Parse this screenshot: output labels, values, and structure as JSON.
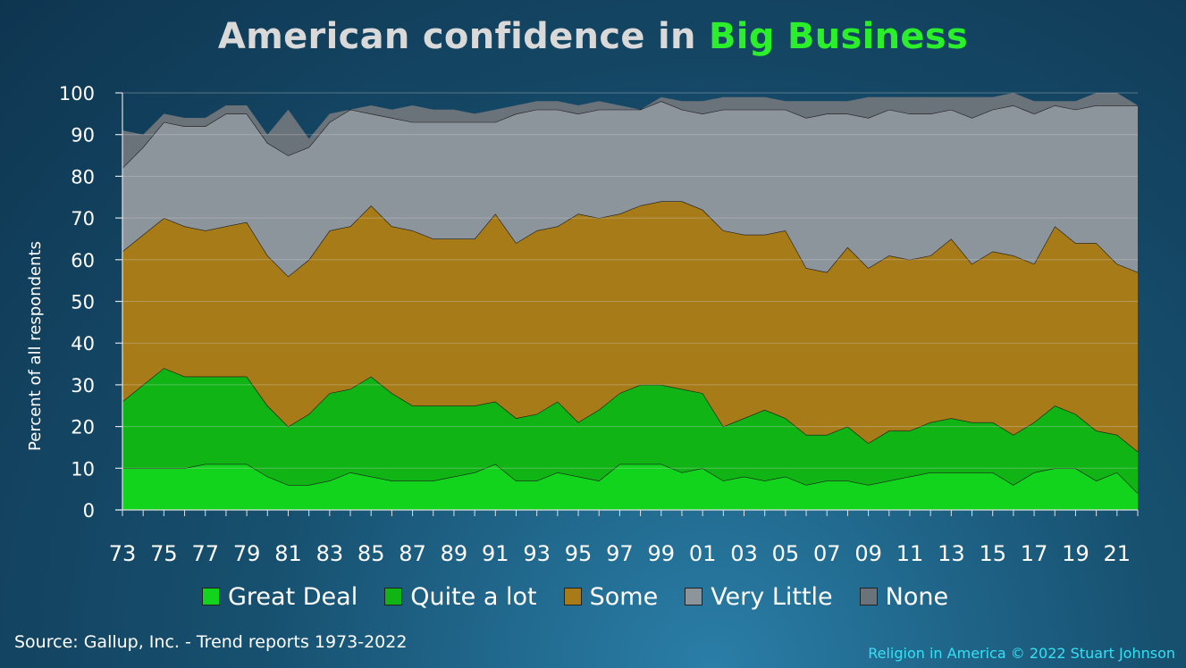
{
  "title": {
    "prefix": "American confidence in",
    "highlight": "Big Business"
  },
  "source": "Source: Gallup, Inc. - Trend reports 1973-2022",
  "copyright": "Religion in America © 2022 Stuart Johnson",
  "colors": {
    "great_deal": "#12d41d",
    "quite_a_lot": "#10b415",
    "some": "#a67b18",
    "very_little": "#8c949c",
    "none": "#6a727a",
    "title_accent": "#2bef2b",
    "copyright": "#35e0f5"
  },
  "chart_data": {
    "type": "area",
    "stacked": true,
    "ylabel": "Percent of all respondents",
    "xlabel": "",
    "ylim": [
      0,
      100
    ],
    "yticks": [
      0,
      10,
      20,
      30,
      40,
      50,
      60,
      70,
      80,
      90,
      100
    ],
    "grid": true,
    "legend_position": "bottom",
    "x": [
      1973,
      1974,
      1975,
      1976,
      1977,
      1978,
      1979,
      1980,
      1981,
      1982,
      1983,
      1984,
      1985,
      1986,
      1987,
      1988,
      1989,
      1990,
      1991,
      1992,
      1993,
      1994,
      1995,
      1996,
      1997,
      1998,
      1999,
      2000,
      2001,
      2002,
      2003,
      2004,
      2005,
      2006,
      2007,
      2008,
      2009,
      2010,
      2011,
      2012,
      2013,
      2014,
      2015,
      2016,
      2017,
      2018,
      2019,
      2020,
      2021,
      2022
    ],
    "x_tick_labels": [
      "73",
      "75",
      "77",
      "79",
      "81",
      "83",
      "85",
      "87",
      "89",
      "91",
      "93",
      "95",
      "97",
      "99",
      "01",
      "03",
      "05",
      "07",
      "09",
      "11",
      "13",
      "15",
      "17",
      "19",
      "21"
    ],
    "series": [
      {
        "name": "Great Deal",
        "color": "#12d41d",
        "values": [
          10,
          10,
          10,
          10,
          11,
          11,
          11,
          8,
          6,
          6,
          7,
          9,
          8,
          7,
          7,
          7,
          8,
          9,
          11,
          7,
          7,
          9,
          8,
          7,
          11,
          11,
          11,
          9,
          10,
          7,
          8,
          7,
          8,
          6,
          7,
          7,
          6,
          7,
          8,
          9,
          9,
          9,
          9,
          6,
          9,
          10,
          10,
          7,
          9,
          4
        ]
      },
      {
        "name": "Quite a lot",
        "color": "#10b415",
        "values": [
          16,
          20,
          24,
          22,
          21,
          21,
          21,
          17,
          14,
          17,
          21,
          20,
          24,
          21,
          18,
          18,
          17,
          16,
          15,
          15,
          16,
          17,
          13,
          17,
          17,
          19,
          19,
          20,
          18,
          13,
          14,
          17,
          14,
          12,
          11,
          13,
          10,
          12,
          11,
          12,
          13,
          12,
          12,
          12,
          12,
          15,
          13,
          12,
          9,
          10
        ]
      },
      {
        "name": "Some",
        "color": "#a67b18",
        "values": [
          36,
          36,
          36,
          36,
          35,
          36,
          37,
          36,
          36,
          37,
          39,
          39,
          41,
          40,
          42,
          40,
          40,
          40,
          45,
          42,
          44,
          42,
          50,
          46,
          43,
          43,
          44,
          45,
          44,
          47,
          44,
          42,
          45,
          40,
          39,
          43,
          42,
          42,
          41,
          40,
          43,
          38,
          41,
          43,
          38,
          43,
          41,
          45,
          41,
          43
        ]
      },
      {
        "name": "Very Little",
        "color": "#8c949c",
        "values": [
          20,
          21,
          23,
          24,
          25,
          27,
          26,
          27,
          29,
          27,
          26,
          28,
          22,
          26,
          26,
          28,
          28,
          28,
          22,
          31,
          29,
          28,
          24,
          26,
          25,
          23,
          24,
          22,
          23,
          29,
          30,
          30,
          29,
          36,
          38,
          32,
          36,
          35,
          35,
          34,
          31,
          35,
          34,
          36,
          36,
          29,
          32,
          33,
          38,
          40
        ]
      },
      {
        "name": "None",
        "color": "#6a727a",
        "values": [
          9,
          3,
          2,
          2,
          2,
          2,
          2,
          2,
          11,
          2,
          2,
          0,
          2,
          2,
          4,
          3,
          3,
          2,
          3,
          2,
          2,
          2,
          2,
          2,
          1,
          0,
          1,
          2,
          3,
          3,
          3,
          3,
          2,
          4,
          3,
          3,
          5,
          3,
          4,
          4,
          3,
          5,
          3,
          3,
          3,
          1,
          2,
          3,
          3,
          0
        ]
      }
    ]
  }
}
